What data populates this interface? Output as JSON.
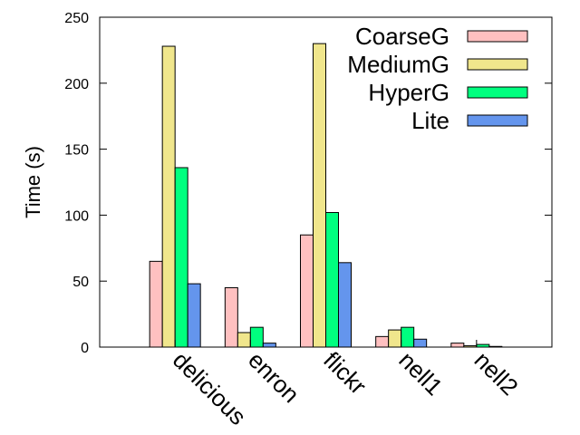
{
  "chart_data": {
    "type": "bar",
    "title": "",
    "xlabel": "",
    "ylabel": "Time (s)",
    "ylim": [
      0,
      250
    ],
    "yticks": [
      0,
      50,
      100,
      150,
      200,
      250
    ],
    "grid": false,
    "legend_position": "top-right",
    "categories": [
      "delicious",
      "enron",
      "flickr",
      "nell1",
      "nell2"
    ],
    "series": [
      {
        "name": "CoarseG",
        "color": "#ffc0c0",
        "values": [
          65,
          45,
          85,
          8,
          3
        ]
      },
      {
        "name": "MediumG",
        "color": "#f0e68c",
        "values": [
          228,
          11,
          230,
          13,
          1
        ]
      },
      {
        "name": "HyperG",
        "color": "#00ff7f",
        "values": [
          136,
          15,
          102,
          15,
          2
        ]
      },
      {
        "name": "Lite",
        "color": "#6495ed",
        "values": [
          48,
          3,
          64,
          6,
          0.5
        ]
      }
    ]
  }
}
